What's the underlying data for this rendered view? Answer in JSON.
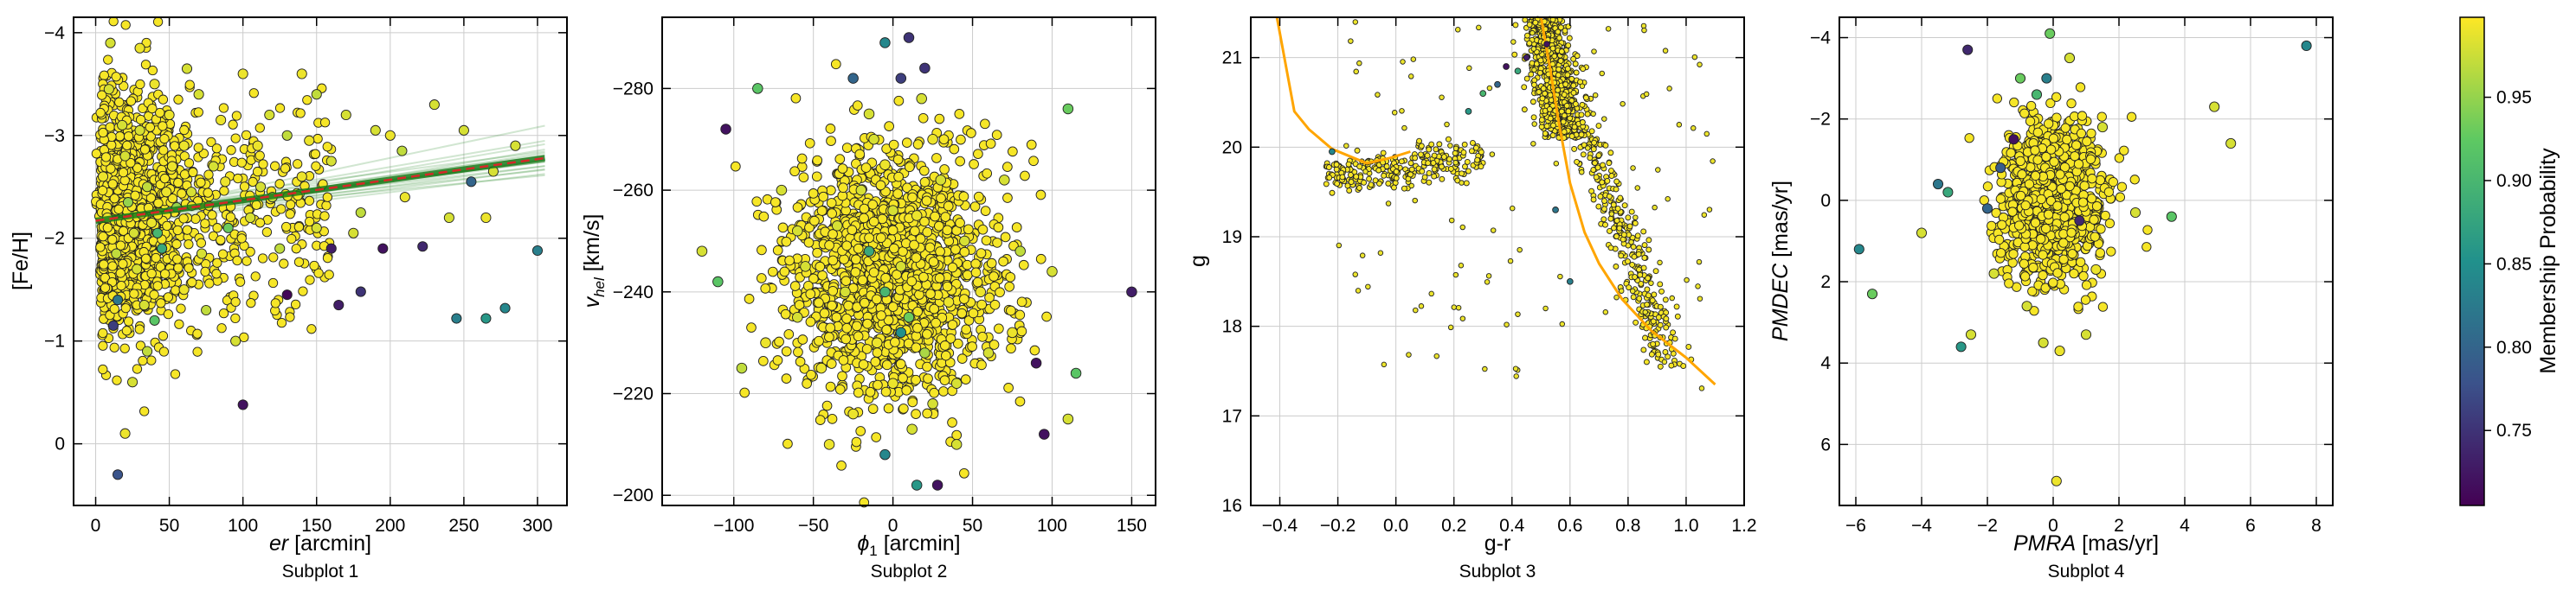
{
  "colormap": [
    "#440154",
    "#3b528b",
    "#21918c",
    "#5ec962",
    "#fde725"
  ],
  "colors": {
    "point_edge": "#222222",
    "trend_fill": "#2e8b2e",
    "trend_line": "#1a7a1a",
    "fit_line": "#d62728",
    "isochrone": "#ffa500",
    "grid": "#cccccc"
  },
  "colorbar": {
    "label": "Membership Probability",
    "range": [
      0.705,
      0.998
    ],
    "ticks": [
      {
        "value": 0.75,
        "label": "0.75"
      },
      {
        "value": 0.8,
        "label": "0.80"
      },
      {
        "value": 0.85,
        "label": "0.85"
      },
      {
        "value": 0.9,
        "label": "0.90"
      },
      {
        "value": 0.95,
        "label": "0.95"
      }
    ]
  },
  "chart_data": [
    {
      "type": "scatter",
      "subtitle": "Subplot 1",
      "xlabel": "er [arcmin]",
      "ylabel": "[Fe/H]",
      "xlim": [
        -15,
        320
      ],
      "ylim": [
        -4.15,
        0.6
      ],
      "xticks": [
        {
          "value": 0,
          "label": "0"
        },
        {
          "value": 50,
          "label": "50"
        },
        {
          "value": 100,
          "label": "100"
        },
        {
          "value": 150,
          "label": "150"
        },
        {
          "value": 200,
          "label": "200"
        },
        {
          "value": 250,
          "label": "250"
        },
        {
          "value": 300,
          "label": "300"
        }
      ],
      "yticks": [
        {
          "value": 0,
          "label": "0"
        },
        {
          "value": -1,
          "label": "−1"
        },
        {
          "value": -2,
          "label": "−2"
        },
        {
          "value": -3,
          "label": "−3"
        },
        {
          "value": -4,
          "label": "−4"
        }
      ],
      "trend": {
        "x": [
          0,
          305
        ],
        "y": [
          -2.17,
          -2.78
        ]
      },
      "points": [
        [
          15,
          0.3,
          0.78
        ],
        [
          20,
          -0.1,
          0.99
        ],
        [
          100,
          -0.38,
          0.72
        ],
        [
          265,
          -1.22,
          0.86
        ],
        [
          300,
          -1.88,
          0.83
        ],
        [
          130,
          -1.45,
          0.71
        ],
        [
          165,
          -1.35,
          0.73
        ],
        [
          180,
          -1.48,
          0.75
        ],
        [
          245,
          -1.22,
          0.83
        ],
        [
          278,
          -1.32,
          0.84
        ],
        [
          195,
          -1.9,
          0.72
        ],
        [
          160,
          -1.9,
          0.73
        ],
        [
          222,
          -1.92,
          0.74
        ],
        [
          255,
          -2.55,
          0.8
        ],
        [
          265,
          -2.2,
          0.99
        ],
        [
          270,
          -2.65,
          0.98
        ],
        [
          208,
          -2.85,
          0.97
        ],
        [
          240,
          -2.2,
          0.98
        ],
        [
          180,
          -2.25,
          0.97
        ],
        [
          150,
          -2.1,
          0.98
        ],
        [
          140,
          -2.6,
          0.99
        ],
        [
          120,
          -2.4,
          0.97
        ],
        [
          90,
          -2.1,
          0.93
        ],
        [
          95,
          -1.0,
          0.98
        ],
        [
          75,
          -1.3,
          0.97
        ],
        [
          60,
          -1.5,
          0.99
        ],
        [
          40,
          -1.2,
          0.92
        ],
        [
          25,
          -0.6,
          0.98
        ],
        [
          35,
          -0.9,
          0.97
        ],
        [
          50,
          -3.2,
          0.99
        ],
        [
          70,
          -3.4,
          0.98
        ],
        [
          100,
          -3.6,
          0.99
        ],
        [
          150,
          -3.4,
          0.97
        ],
        [
          10,
          -3.9,
          0.98
        ],
        [
          30,
          -3.85,
          0.99
        ],
        [
          170,
          -3.2,
          0.98
        ],
        [
          200,
          -3.0,
          0.99
        ],
        [
          230,
          -3.3,
          0.98
        ],
        [
          60,
          -2.9,
          0.99
        ],
        [
          80,
          -2.7,
          0.98
        ],
        [
          110,
          -2.9,
          0.99
        ],
        [
          130,
          -3.0,
          0.97
        ],
        [
          45,
          -1.9,
          0.88
        ],
        [
          15,
          -1.4,
          0.82
        ],
        [
          12,
          -1.15,
          0.76
        ],
        [
          55,
          -2.3,
          0.95
        ],
        [
          35,
          -2.5,
          0.97
        ],
        [
          20,
          -2.8,
          0.98
        ],
        [
          8,
          -2.2,
          0.99
        ],
        [
          28,
          -1.7,
          0.98
        ],
        [
          5,
          -2.6,
          0.99
        ],
        [
          18,
          -3.1,
          0.98
        ],
        [
          40,
          -3.5,
          0.99
        ],
        [
          65,
          -2.45,
          0.98
        ],
        [
          88,
          -2.55,
          0.99
        ],
        [
          105,
          -2.2,
          0.98
        ],
        [
          118,
          -3.2,
          0.98
        ],
        [
          125,
          -1.9,
          0.97
        ],
        [
          140,
          -3.6,
          0.99
        ],
        [
          160,
          -2.75,
          0.98
        ],
        [
          190,
          -3.05,
          0.98
        ],
        [
          210,
          -2.4,
          0.99
        ],
        [
          250,
          -3.05,
          0.98
        ],
        [
          285,
          -2.9,
          0.98
        ],
        [
          42,
          -2.05,
          0.9
        ],
        [
          22,
          -2.35,
          0.95
        ],
        [
          33,
          -1.35,
          0.98
        ],
        [
          14,
          -1.85,
          0.97
        ],
        [
          52,
          -2.7,
          0.99
        ],
        [
          72,
          -1.85,
          0.98
        ],
        [
          30,
          -3.05,
          0.98
        ],
        [
          48,
          -2.45,
          0.99
        ],
        [
          9,
          -3.45,
          0.98
        ],
        [
          62,
          -3.65,
          0.98
        ],
        [
          85,
          -3.15,
          0.99
        ],
        [
          112,
          -2.5,
          0.98
        ],
        [
          145,
          -2.95,
          0.99
        ],
        [
          175,
          -2.05,
          0.98
        ],
        [
          38,
          -2.15,
          0.99
        ],
        [
          26,
          -2.05,
          0.98
        ]
      ]
    },
    {
      "type": "scatter",
      "subtitle": "Subplot 2",
      "xlabel": "ϕ1 [arcmin]",
      "ylabel": "vhel [km/s]",
      "xlim": [
        -145,
        165
      ],
      "ylim": [
        -294,
        -198
      ],
      "xticks": [
        {
          "value": -100,
          "label": "−100"
        },
        {
          "value": -50,
          "label": "−50"
        },
        {
          "value": 0,
          "label": "0"
        },
        {
          "value": 50,
          "label": "50"
        },
        {
          "value": 100,
          "label": "100"
        },
        {
          "value": 150,
          "label": "150"
        }
      ],
      "yticks": [
        {
          "value": -200,
          "label": "−200"
        },
        {
          "value": -220,
          "label": "−220"
        },
        {
          "value": -240,
          "label": "−240"
        },
        {
          "value": -260,
          "label": "−260"
        },
        {
          "value": -280,
          "label": "−280"
        }
      ],
      "points": [
        [
          15,
          -202,
          0.86
        ],
        [
          28,
          -202,
          0.72
        ],
        [
          -5,
          -208,
          0.84
        ],
        [
          95,
          -212,
          0.72
        ],
        [
          110,
          -215,
          0.98
        ],
        [
          115,
          -224,
          0.92
        ],
        [
          90,
          -226,
          0.72
        ],
        [
          150,
          -240,
          0.73
        ],
        [
          -105,
          -272,
          0.72
        ],
        [
          -85,
          -280,
          0.92
        ],
        [
          -25,
          -282,
          0.8
        ],
        [
          5,
          -282,
          0.76
        ],
        [
          20,
          -284,
          0.75
        ],
        [
          -5,
          -289,
          0.84
        ],
        [
          10,
          -290,
          0.75
        ],
        [
          110,
          -276,
          0.93
        ],
        [
          -110,
          -242,
          0.92
        ],
        [
          -60,
          -235,
          0.98
        ],
        [
          -60,
          -252,
          0.98
        ],
        [
          60,
          -228,
          0.98
        ],
        [
          80,
          -248,
          0.97
        ],
        [
          100,
          -244,
          0.98
        ],
        [
          -40,
          -210,
          0.99
        ],
        [
          40,
          -210,
          0.98
        ],
        [
          -80,
          -230,
          0.99
        ],
        [
          -120,
          -248,
          0.98
        ],
        [
          -95,
          -225,
          0.97
        ],
        [
          70,
          -262,
          0.98
        ],
        [
          -15,
          -275,
          0.98
        ],
        [
          25,
          -270,
          0.99
        ],
        [
          -10,
          -230,
          0.99
        ],
        [
          5,
          -245,
          0.98
        ],
        [
          15,
          -255,
          0.99
        ],
        [
          -30,
          -240,
          0.98
        ],
        [
          35,
          -238,
          0.99
        ],
        [
          -20,
          -260,
          0.98
        ],
        [
          0,
          -222,
          0.99
        ],
        [
          25,
          -218,
          0.98
        ],
        [
          -45,
          -225,
          0.99
        ],
        [
          45,
          -250,
          0.98
        ],
        [
          -5,
          -265,
          0.99
        ],
        [
          10,
          -235,
          0.93
        ],
        [
          -15,
          -248,
          0.88
        ],
        [
          20,
          -228,
          0.96
        ],
        [
          -35,
          -253,
          0.98
        ],
        [
          30,
          -262,
          0.98
        ],
        [
          55,
          -240,
          0.99
        ],
        [
          -55,
          -245,
          0.98
        ],
        [
          0,
          -256,
          0.98
        ],
        [
          12,
          -213,
          0.98
        ],
        [
          -25,
          -216,
          0.99
        ],
        [
          40,
          -222,
          0.98
        ],
        [
          -12,
          -270,
          0.98
        ],
        [
          18,
          -278,
          0.98
        ],
        [
          -70,
          -260,
          0.98
        ],
        [
          75,
          -232,
          0.99
        ],
        [
          5,
          -232,
          0.85
        ],
        [
          -5,
          -240,
          0.9
        ]
      ]
    },
    {
      "type": "scatter",
      "subtitle": "Subplot 3",
      "xlabel": "g-r",
      "ylabel": "g",
      "xlim": [
        -0.5,
        1.2
      ],
      "ylim": [
        21.45,
        16.0
      ],
      "xticks": [
        {
          "value": -0.4,
          "label": "−0.4"
        },
        {
          "value": -0.2,
          "label": "−0.2"
        },
        {
          "value": 0.0,
          "label": "0.0"
        },
        {
          "value": 0.2,
          "label": "0.2"
        },
        {
          "value": 0.4,
          "label": "0.4"
        },
        {
          "value": 0.6,
          "label": "0.6"
        },
        {
          "value": 0.8,
          "label": "0.8"
        },
        {
          "value": 1.0,
          "label": "1.0"
        },
        {
          "value": 1.2,
          "label": "1.2"
        }
      ],
      "yticks": [
        {
          "value": 16,
          "label": "16"
        },
        {
          "value": 17,
          "label": "17"
        },
        {
          "value": 18,
          "label": "18"
        },
        {
          "value": 19,
          "label": "19"
        },
        {
          "value": 20,
          "label": "20"
        },
        {
          "value": 21,
          "label": "21"
        }
      ],
      "isochrone": {
        "x": [
          -0.41,
          -0.35,
          -0.3,
          -0.22,
          -0.1,
          -0.02,
          0.05,
          0.5,
          0.53,
          0.56,
          0.6,
          0.65,
          0.7,
          0.78,
          0.88,
          1.0,
          1.1
        ],
        "y": [
          21.45,
          20.4,
          20.2,
          19.98,
          19.82,
          19.88,
          19.95,
          21.45,
          20.9,
          20.3,
          19.6,
          19.05,
          18.7,
          18.3,
          17.95,
          17.65,
          17.35
        ]
      },
      "points": [
        [
          0.38,
          20.9,
          0.72
        ],
        [
          0.45,
          21.0,
          0.73
        ],
        [
          0.35,
          20.7,
          0.8
        ],
        [
          0.55,
          19.3,
          0.82
        ],
        [
          0.6,
          18.5,
          0.83
        ],
        [
          -0.22,
          19.95,
          0.84
        ],
        [
          0.25,
          20.4,
          0.86
        ],
        [
          0.3,
          20.6,
          0.9
        ],
        [
          0.52,
          21.15,
          0.72
        ],
        [
          0.42,
          20.85,
          0.88
        ]
      ]
    },
    {
      "type": "scatter",
      "subtitle": "Subplot 4",
      "xlabel": "PMRA [mas/yr]",
      "ylabel": "PMDEC [mas/yr]",
      "xlim": [
        -6.5,
        8.5
      ],
      "ylim": [
        -4.5,
        7.5
      ],
      "xticks": [
        {
          "value": -6,
          "label": "−6"
        },
        {
          "value": -4,
          "label": "−4"
        },
        {
          "value": -2,
          "label": "−2"
        },
        {
          "value": 0,
          "label": "0"
        },
        {
          "value": 2,
          "label": "2"
        },
        {
          "value": 4,
          "label": "4"
        },
        {
          "value": 6,
          "label": "6"
        },
        {
          "value": 8,
          "label": "8"
        }
      ],
      "yticks": [
        {
          "value": -4,
          "label": "−4"
        },
        {
          "value": -2,
          "label": "−2"
        },
        {
          "value": 0,
          "label": "0"
        },
        {
          "value": 2,
          "label": "2"
        },
        {
          "value": 4,
          "label": "4"
        },
        {
          "value": 6,
          "label": "6"
        }
      ],
      "points": [
        [
          0.1,
          6.9,
          0.99
        ],
        [
          -5.9,
          1.2,
          0.84
        ],
        [
          -5.5,
          2.3,
          0.93
        ],
        [
          -2.8,
          3.6,
          0.86
        ],
        [
          -2.5,
          3.3,
          0.98
        ],
        [
          7.7,
          -3.8,
          0.84
        ],
        [
          5.4,
          -1.4,
          0.98
        ],
        [
          4.9,
          -2.3,
          0.98
        ],
        [
          3.6,
          0.4,
          0.92
        ],
        [
          -0.1,
          -4.1,
          0.93
        ],
        [
          -2.6,
          -3.7,
          0.74
        ],
        [
          -1.0,
          -3.0,
          0.93
        ],
        [
          -0.2,
          -3.0,
          0.83
        ],
        [
          -0.5,
          -2.6,
          0.9
        ],
        [
          -1.2,
          -1.5,
          0.72
        ],
        [
          0.8,
          0.5,
          0.74
        ],
        [
          -3.5,
          -0.4,
          0.82
        ],
        [
          -3.2,
          -0.2,
          0.88
        ],
        [
          -2.0,
          0.2,
          0.8
        ],
        [
          -1.6,
          -0.8,
          0.79
        ],
        [
          0.2,
          3.7,
          0.99
        ],
        [
          -0.3,
          3.5,
          0.98
        ],
        [
          1.0,
          3.3,
          0.98
        ],
        [
          2.5,
          0.3,
          0.98
        ],
        [
          -4.0,
          0.8,
          0.98
        ],
        [
          1.5,
          -1.8,
          0.98
        ],
        [
          0.5,
          -3.5,
          0.98
        ],
        [
          -1.8,
          1.8,
          0.98
        ],
        [
          1.3,
          1.7,
          0.99
        ],
        [
          -0.8,
          2.6,
          0.98
        ]
      ]
    }
  ]
}
